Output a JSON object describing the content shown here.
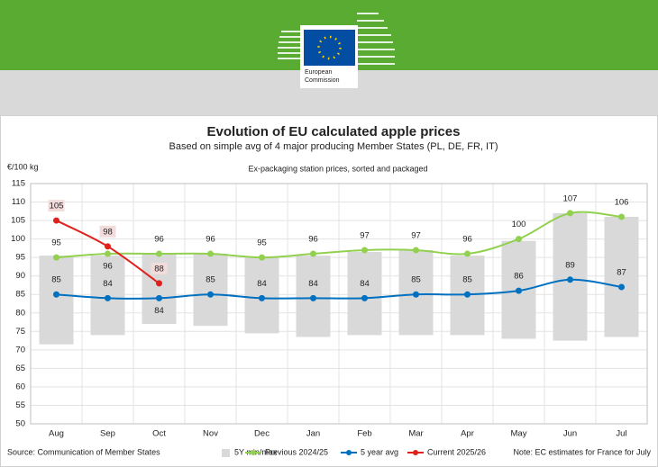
{
  "header": {
    "logo_lines": [
      "European",
      "Commission"
    ]
  },
  "chart_data": {
    "type": "line",
    "title": "Evolution of EU calculated apple prices",
    "subtitle": "Based on simple avg of 4 major producing Member States (PL, DE, FR, IT)",
    "annotation": "Ex-packaging station prices, sorted and packaged",
    "ylabel": "€/100 kg",
    "source": "Source: Communication of Member States",
    "note": "Note: EC estimates for France for July",
    "categories": [
      "Aug",
      "Sep",
      "Oct",
      "Nov",
      "Dec",
      "Jan",
      "Feb",
      "Mar",
      "Apr",
      "May",
      "Jun",
      "Jul"
    ],
    "ylim": [
      50,
      115
    ],
    "yticks": [
      50,
      55,
      60,
      65,
      70,
      75,
      80,
      85,
      90,
      95,
      100,
      105,
      110,
      115
    ],
    "grid": true,
    "legend": "bottom",
    "range": {
      "name": "5Y min/max",
      "color": "#d9d9d9",
      "low": [
        71.5,
        74,
        77,
        76.5,
        74.5,
        73.5,
        74,
        74,
        74,
        73,
        72.5,
        73.5
      ],
      "high": [
        95.5,
        95.5,
        96,
        96,
        95,
        95.5,
        96.5,
        97,
        95.5,
        99.5,
        107,
        106
      ]
    },
    "series": [
      {
        "name": "Previous 2024/25",
        "color": "#92d050",
        "values": [
          95,
          96,
          96,
          96,
          95,
          96,
          97,
          97,
          96,
          100,
          107,
          106
        ]
      },
      {
        "name": "5 year avg",
        "color": "#0070c0",
        "values": [
          85,
          84,
          84,
          85,
          84,
          84,
          84,
          85,
          85,
          86,
          89,
          87
        ]
      },
      {
        "name": "Current 2025/26",
        "color": "#e0201b",
        "values": [
          105,
          98,
          88,
          null,
          null,
          null,
          null,
          null,
          null,
          null,
          null,
          null
        ]
      }
    ]
  }
}
